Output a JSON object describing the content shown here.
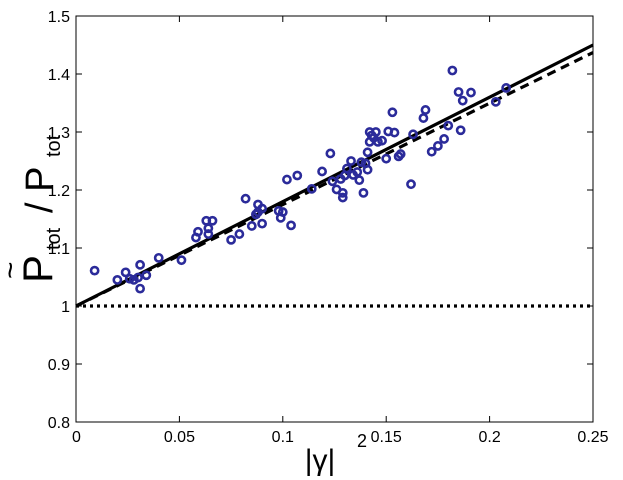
{
  "chart_data": {
    "type": "scatter",
    "title": "",
    "xlabel": "|γ|",
    "xlabel_sup": "2",
    "ylabel_main": "P",
    "ylabel_accent": "~",
    "ylabel_sub": "tot",
    "ylabel_sep": "/ P",
    "ylabel_sub2": "tot",
    "xlim": [
      0,
      0.25
    ],
    "ylim": [
      0.8,
      1.5
    ],
    "x_ticks": [
      0,
      0.05,
      0.1,
      0.15,
      0.2,
      0.25
    ],
    "x_tick_labels": [
      "0",
      "0.05",
      "0.1",
      "0.15",
      "0.2",
      "0.25"
    ],
    "y_ticks": [
      0.8,
      0.9,
      1.0,
      1.1,
      1.2,
      1.3,
      1.4,
      1.5
    ],
    "y_tick_labels": [
      "0.8",
      "0.9",
      "1",
      "1.1",
      "1.2",
      "1.3",
      "1.4",
      "1.5"
    ],
    "grid": false,
    "marker_color": "#2b2b9a",
    "points": [
      [
        0.009,
        1.061
      ],
      [
        0.02,
        1.045
      ],
      [
        0.024,
        1.058
      ],
      [
        0.026,
        1.047
      ],
      [
        0.028,
        1.045
      ],
      [
        0.03,
        1.049
      ],
      [
        0.031,
        1.03
      ],
      [
        0.031,
        1.071
      ],
      [
        0.034,
        1.053
      ],
      [
        0.04,
        1.083
      ],
      [
        0.051,
        1.079
      ],
      [
        0.058,
        1.118
      ],
      [
        0.059,
        1.128
      ],
      [
        0.063,
        1.147
      ],
      [
        0.064,
        1.124
      ],
      [
        0.064,
        1.134
      ],
      [
        0.066,
        1.147
      ],
      [
        0.075,
        1.114
      ],
      [
        0.079,
        1.124
      ],
      [
        0.082,
        1.185
      ],
      [
        0.085,
        1.138
      ],
      [
        0.087,
        1.158
      ],
      [
        0.088,
        1.175
      ],
      [
        0.088,
        1.162
      ],
      [
        0.09,
        1.142
      ],
      [
        0.09,
        1.168
      ],
      [
        0.098,
        1.164
      ],
      [
        0.099,
        1.152
      ],
      [
        0.1,
        1.162
      ],
      [
        0.102,
        1.218
      ],
      [
        0.104,
        1.139
      ],
      [
        0.107,
        1.225
      ],
      [
        0.114,
        1.202
      ],
      [
        0.119,
        1.232
      ],
      [
        0.123,
        1.263
      ],
      [
        0.124,
        1.215
      ],
      [
        0.126,
        1.201
      ],
      [
        0.128,
        1.219
      ],
      [
        0.129,
        1.187
      ],
      [
        0.129,
        1.195
      ],
      [
        0.13,
        1.225
      ],
      [
        0.131,
        1.237
      ],
      [
        0.133,
        1.25
      ],
      [
        0.134,
        1.226
      ],
      [
        0.136,
        1.231
      ],
      [
        0.137,
        1.217
      ],
      [
        0.138,
        1.248
      ],
      [
        0.139,
        1.195
      ],
      [
        0.14,
        1.246
      ],
      [
        0.141,
        1.235
      ],
      [
        0.141,
        1.265
      ],
      [
        0.142,
        1.283
      ],
      [
        0.142,
        1.3
      ],
      [
        0.143,
        1.294
      ],
      [
        0.144,
        1.29
      ],
      [
        0.145,
        1.3
      ],
      [
        0.146,
        1.283
      ],
      [
        0.148,
        1.285
      ],
      [
        0.15,
        1.254
      ],
      [
        0.151,
        1.301
      ],
      [
        0.153,
        1.334
      ],
      [
        0.154,
        1.299
      ],
      [
        0.156,
        1.258
      ],
      [
        0.157,
        1.262
      ],
      [
        0.162,
        1.21
      ],
      [
        0.163,
        1.296
      ],
      [
        0.168,
        1.324
      ],
      [
        0.169,
        1.338
      ],
      [
        0.172,
        1.266
      ],
      [
        0.175,
        1.276
      ],
      [
        0.178,
        1.288
      ],
      [
        0.18,
        1.311
      ],
      [
        0.182,
        1.406
      ],
      [
        0.185,
        1.369
      ],
      [
        0.186,
        1.303
      ],
      [
        0.187,
        1.354
      ],
      [
        0.191,
        1.368
      ],
      [
        0.203,
        1.352
      ],
      [
        0.208,
        1.376
      ]
    ],
    "lines": [
      {
        "style": "solid",
        "x": [
          0,
          0.25
        ],
        "y": [
          1.0,
          1.45
        ]
      },
      {
        "style": "dashed",
        "x": [
          0,
          0.25
        ],
        "y": [
          1.0,
          1.437
        ]
      },
      {
        "style": "dotted",
        "x": [
          0,
          0.25
        ],
        "y": [
          1.0,
          1.0
        ]
      }
    ]
  }
}
